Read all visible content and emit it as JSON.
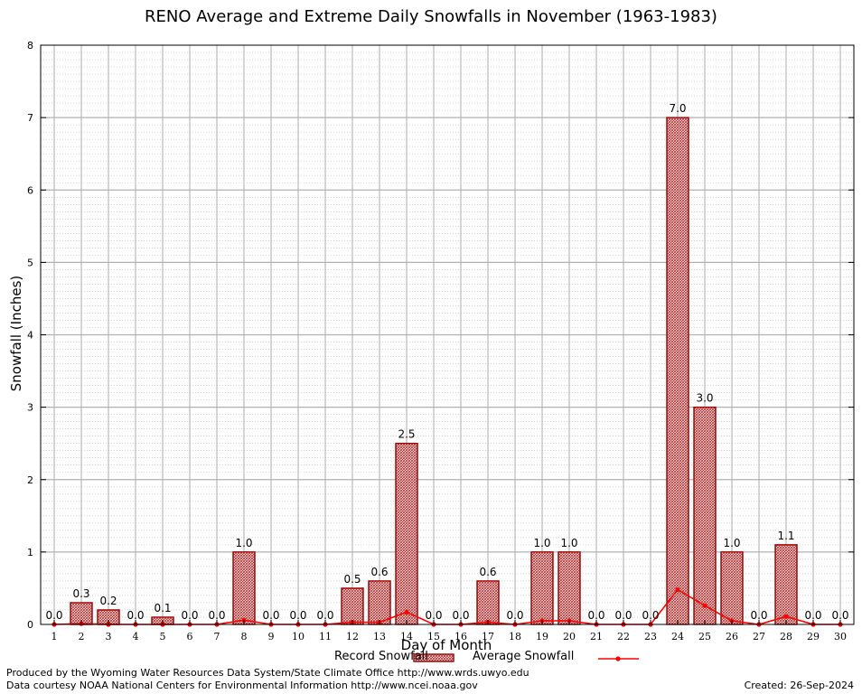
{
  "chart_data": {
    "type": "bar",
    "title": "RENO Average and Extreme Daily Snowfalls in November (1963-1983)",
    "xlabel": "Day of Month",
    "ylabel": "Snowfall (Inches)",
    "ylim": [
      0,
      8
    ],
    "y_ticks": [
      "0",
      "1",
      "2",
      "3",
      "4",
      "5",
      "6",
      "7",
      "8"
    ],
    "categories": [
      "1",
      "2",
      "3",
      "4",
      "5",
      "6",
      "7",
      "8",
      "9",
      "10",
      "11",
      "12",
      "13",
      "14",
      "15",
      "16",
      "17",
      "18",
      "19",
      "20",
      "21",
      "22",
      "23",
      "24",
      "25",
      "26",
      "27",
      "28",
      "29",
      "30"
    ],
    "grid": true,
    "legend_position": "bottom",
    "series": [
      {
        "name": "Record Snowfall",
        "kind": "bar",
        "color": "#b22222",
        "values": [
          0.0,
          0.3,
          0.2,
          0.0,
          0.1,
          0.0,
          0.0,
          1.0,
          0.0,
          0.0,
          0.0,
          0.5,
          0.6,
          2.5,
          0.0,
          0.0,
          0.6,
          0.0,
          1.0,
          1.0,
          0.0,
          0.0,
          0.0,
          7.0,
          3.0,
          1.0,
          0.0,
          1.1,
          0.0,
          0.0
        ],
        "labels": [
          "0.0",
          "0.3",
          "0.2",
          "0.0",
          "0.1",
          "0.0",
          "0.0",
          "1.0",
          "0.0",
          "0.0",
          "0.0",
          "0.5",
          "0.6",
          "2.5",
          "0.0",
          "0.0",
          "0.6",
          "0.0",
          "1.0",
          "1.0",
          "0.0",
          "0.0",
          "0.0",
          "7.0",
          "3.0",
          "1.0",
          "0.0",
          "1.1",
          "0.0",
          "0.0"
        ]
      },
      {
        "name": "Average Snowfall",
        "kind": "line",
        "color": "#ff0000",
        "values": [
          0.0,
          0.01,
          0.0,
          0.0,
          0.0,
          0.0,
          0.0,
          0.06,
          0.0,
          0.0,
          0.0,
          0.03,
          0.03,
          0.17,
          0.0,
          0.0,
          0.03,
          0.0,
          0.05,
          0.05,
          0.0,
          0.0,
          0.0,
          0.48,
          0.26,
          0.05,
          0.0,
          0.11,
          0.0,
          0.0
        ]
      }
    ]
  },
  "footer": {
    "produced_by": "Produced by the Wyoming Water Resources Data System/State Climate Office http://www.wrds.uwyo.edu",
    "courtesy": "Data courtesy NOAA National Centers for Environmental Information http://www.ncei.noaa.gov",
    "created": "Created: 26-Sep-2024"
  }
}
